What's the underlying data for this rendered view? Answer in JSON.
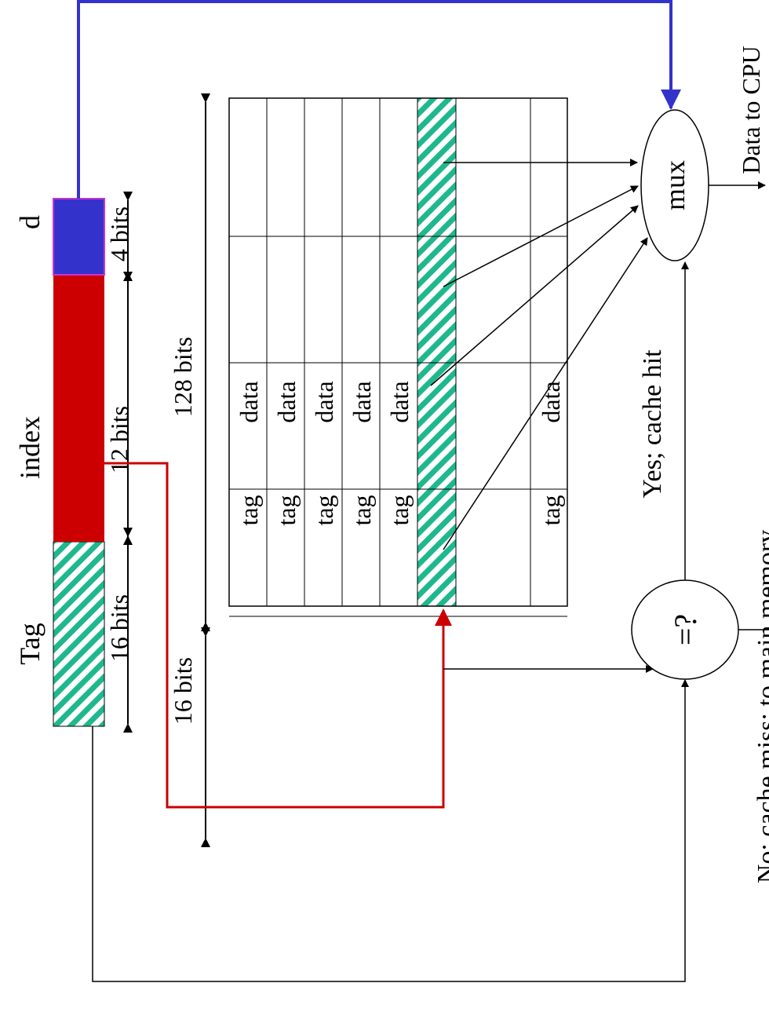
{
  "address": {
    "tag_label": "Tag",
    "index_label": "index",
    "d_label": "d",
    "tag_bits": "16 bits",
    "index_bits": "12 bits",
    "d_bits": "4 bits"
  },
  "cache_table": {
    "tag_width": "16 bits",
    "data_width": "128 bits",
    "tag_cells": [
      "tag",
      "tag",
      "tag",
      "tag",
      "tag",
      "tag"
    ],
    "data_cells": [
      "data",
      "data",
      "data",
      "data",
      "data",
      "data"
    ]
  },
  "compare": {
    "label": "=?",
    "hit_label": "Yes; cache hit",
    "miss_label": "No; cache miss; to main memory"
  },
  "mux": {
    "label": "mux",
    "output_label": "Data to CPU"
  },
  "colors": {
    "tag_stripe": "#1fb88e",
    "index": "#cc0000",
    "offset": "#3333cc",
    "offset_border": "#cc33cc",
    "index_line": "#cc0000",
    "offset_line": "#3333cc"
  }
}
